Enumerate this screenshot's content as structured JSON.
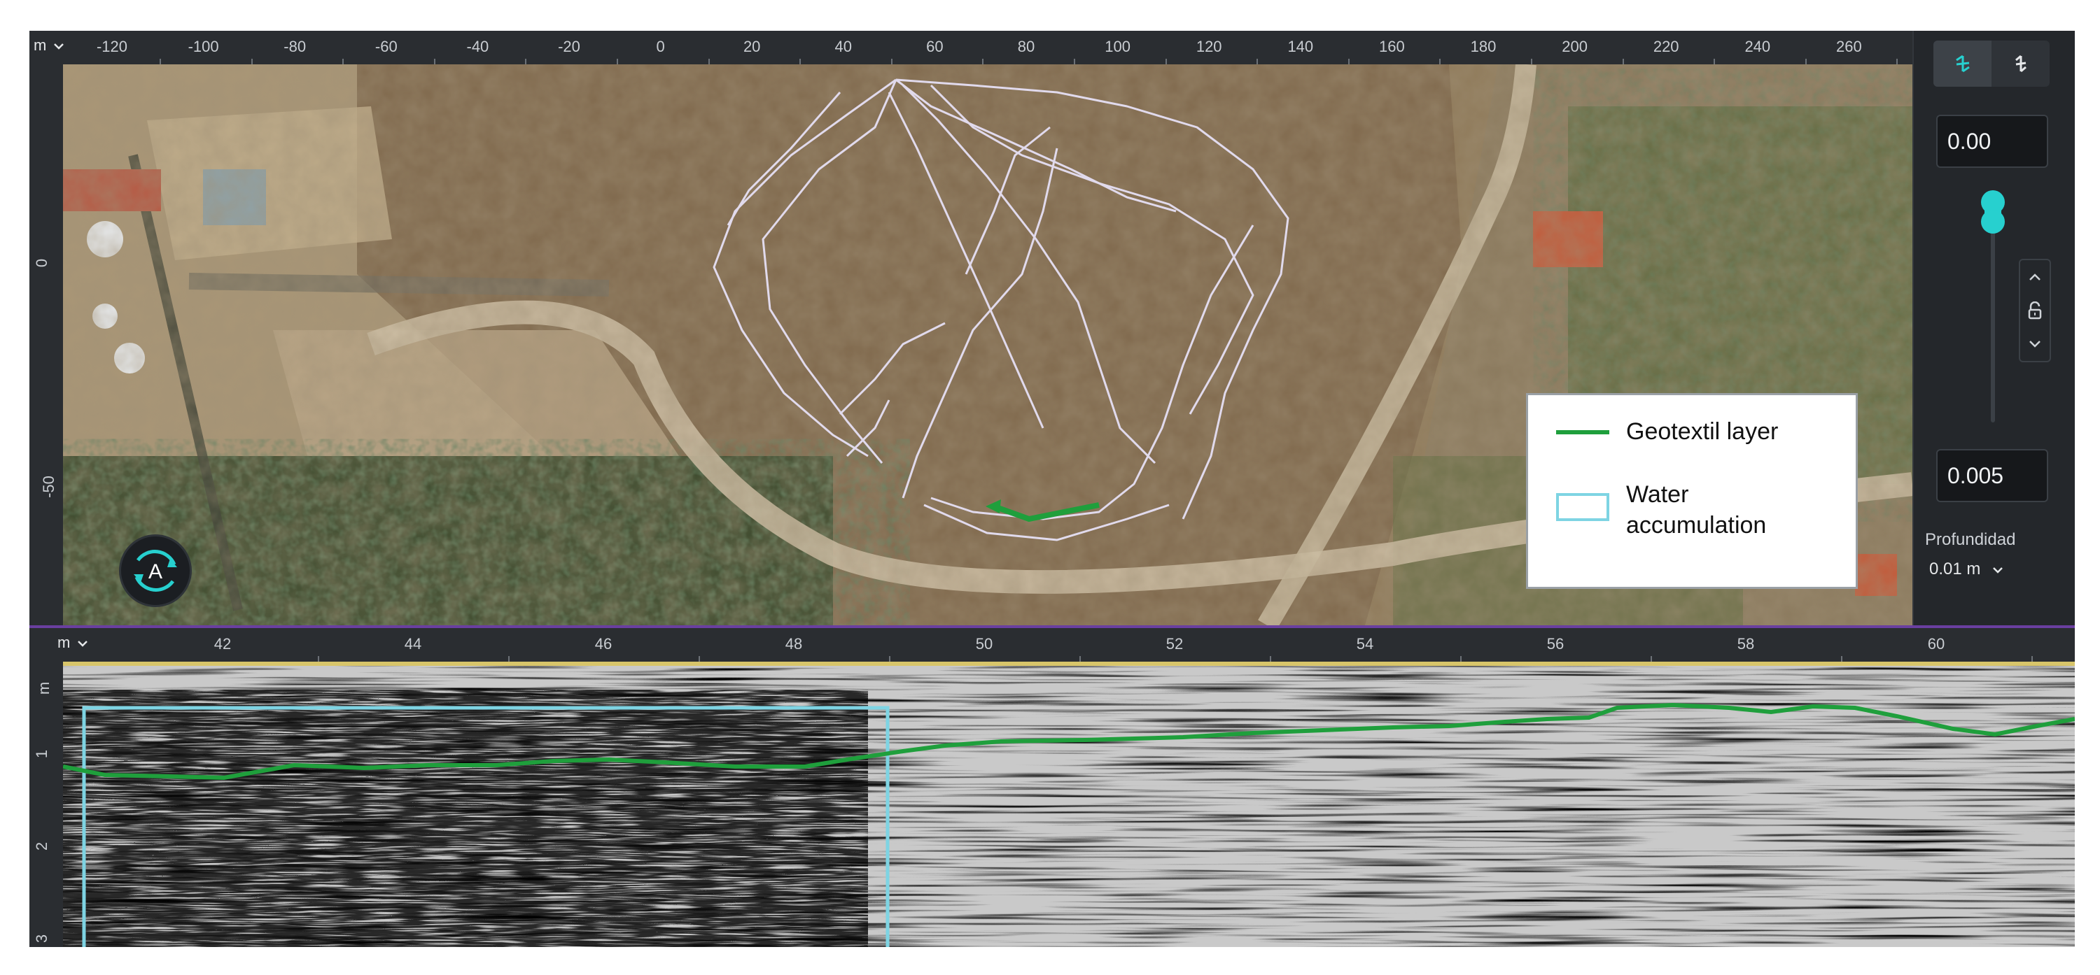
{
  "map": {
    "x_unit_label": "m",
    "x_ticks": [
      "-120",
      "-100",
      "-80",
      "-60",
      "-40",
      "-20",
      "0",
      "20",
      "40",
      "60",
      "80",
      "100",
      "120",
      "140",
      "160",
      "180",
      "200",
      "220",
      "240",
      "260"
    ],
    "y_ticks": [
      "0",
      "-50"
    ],
    "compass_letter": "A",
    "legend": {
      "geotextil_label": "Geotextil layer",
      "water_label": "Water accumulation"
    }
  },
  "side_panel": {
    "mode_icons": [
      "swap-horizontal-icon",
      "swap-vertical-icon"
    ],
    "top_value": "0.00",
    "bottom_value": "0.005",
    "depth_label": "Profundidad",
    "depth_value": "0.01 m"
  },
  "radar": {
    "x_unit_label": "m",
    "x_ticks": [
      "42",
      "44",
      "46",
      "48",
      "50",
      "52",
      "54",
      "56",
      "58",
      "60"
    ],
    "y_unit_label": "m",
    "y_ticks": [
      "1",
      "2",
      "3"
    ]
  },
  "colors": {
    "geotextil_line": "#1f9f3c",
    "water_box": "#7ed4e3",
    "accent": "#27d0cf",
    "divider": "#6a3fa0"
  }
}
